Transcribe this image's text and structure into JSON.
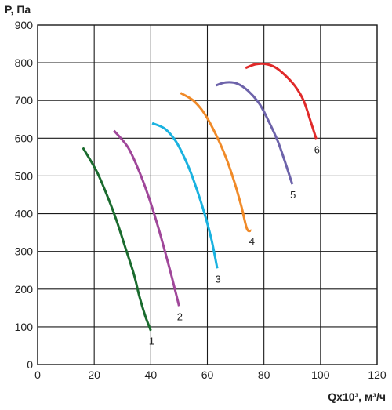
{
  "chart_data": {
    "type": "line",
    "ylabel": "P, Па",
    "xlabel": "Qx10³, м³/ч",
    "xlim": [
      0,
      120
    ],
    "ylim": [
      0,
      900
    ],
    "x_ticks": [
      0,
      20,
      40,
      60,
      80,
      100,
      120
    ],
    "y_ticks": [
      0,
      100,
      200,
      300,
      400,
      500,
      600,
      700,
      800,
      900
    ],
    "grid": true,
    "series": [
      {
        "name": "1",
        "color": "#1a6b2e",
        "x": [
          16,
          21,
          25,
          28,
          31,
          34,
          36,
          38,
          40
        ],
        "y": [
          575,
          510,
          440,
          380,
          310,
          240,
          180,
          130,
          90
        ]
      },
      {
        "name": "2",
        "color": "#a0479a",
        "x": [
          27,
          32,
          36,
          39,
          42,
          45,
          47.5,
          50
        ],
        "y": [
          620,
          575,
          510,
          450,
          380,
          300,
          230,
          155
        ]
      },
      {
        "name": "3",
        "color": "#1ab2e0",
        "x": [
          40.5,
          45,
          49,
          53,
          56,
          59,
          61.5,
          63.5
        ],
        "y": [
          640,
          625,
          590,
          530,
          470,
          400,
          330,
          255
        ]
      },
      {
        "name": "4",
        "color": "#f08a28",
        "x": [
          50.5,
          55,
          59,
          63,
          66.5,
          69.5,
          72,
          74,
          75.5
        ],
        "y": [
          720,
          700,
          665,
          610,
          550,
          485,
          420,
          360,
          355
        ]
      },
      {
        "name": "5",
        "color": "#6d63aa",
        "x": [
          63,
          66.5,
          70.5,
          74.5,
          78.5,
          82,
          85,
          88,
          90
        ],
        "y": [
          740,
          748,
          745,
          725,
          690,
          640,
          590,
          525,
          478
        ]
      },
      {
        "name": "6",
        "color": "#e02a2a",
        "x": [
          73.5,
          77,
          80.5,
          84,
          87.5,
          91,
          94,
          96.5,
          98.5
        ],
        "y": [
          786,
          796,
          797,
          788,
          767,
          738,
          700,
          645,
          598
        ]
      }
    ]
  }
}
